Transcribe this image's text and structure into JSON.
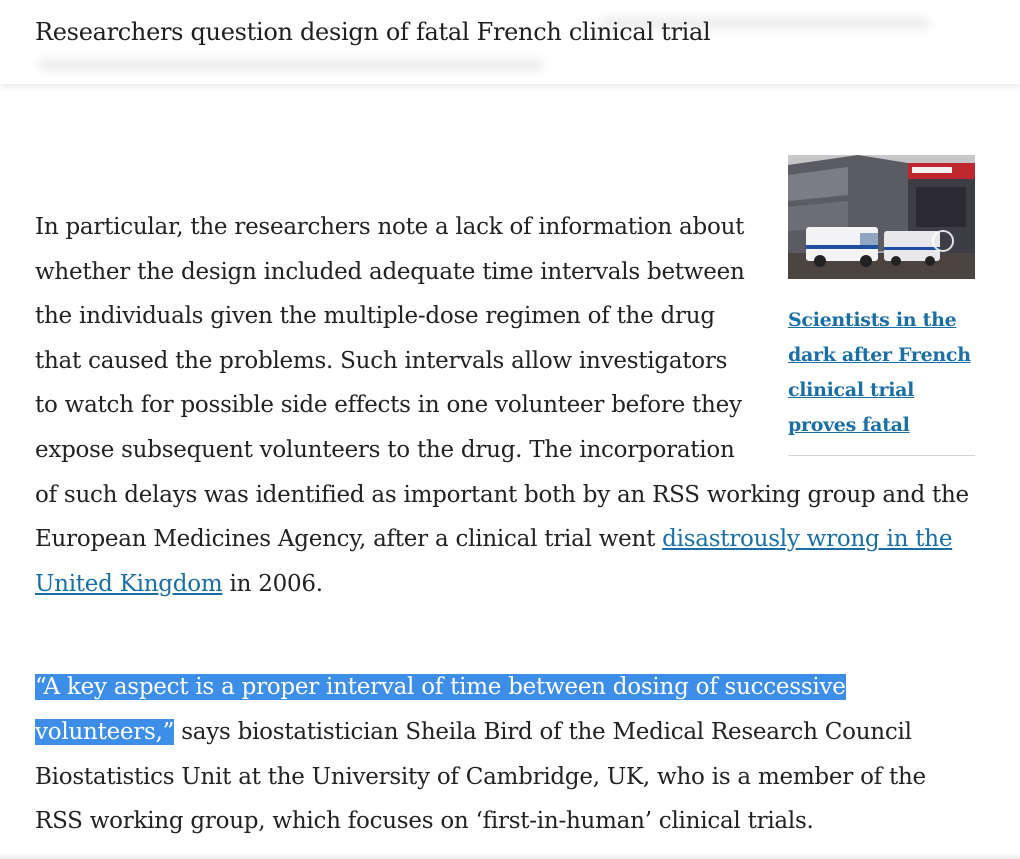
{
  "header": {
    "title": "Researchers question design of fatal French clinical trial"
  },
  "related": {
    "image_alt": "Ambulances outside a hospital entrance",
    "link_text": "Scientists in the dark after French clinical trial proves fatal",
    "image_watermark": "©"
  },
  "article": {
    "para1": {
      "text": "In particular, the researchers note a lack of information about whether the design included adequate time intervals between the individuals given the multiple-dose regimen of the drug that caused the problems. Such intervals allow investigators to watch for possible side effects in one volunteer before they expose subsequent volunteers to the drug. The incorporation of such delays was identified as important both by an RSS working group and the European Medicines Agency, after a clinical trial went ",
      "link_text": "disastrously wrong in the United Kingdom",
      "tail": " in 2006."
    },
    "para2": {
      "highlighted": "“A key aspect is a proper interval of time between dosing of successive volunteers,”",
      "text": " says biostatistician Sheila Bird of the Medical Research Council Biostatistics Unit at the University of Cambridge, UK, who is a member of the RSS working group, which focuses on ‘first-in-human’ clinical trials."
    }
  },
  "colors": {
    "link": "#1a6fa5",
    "highlight": "#3d8ee8",
    "text": "#222222"
  }
}
